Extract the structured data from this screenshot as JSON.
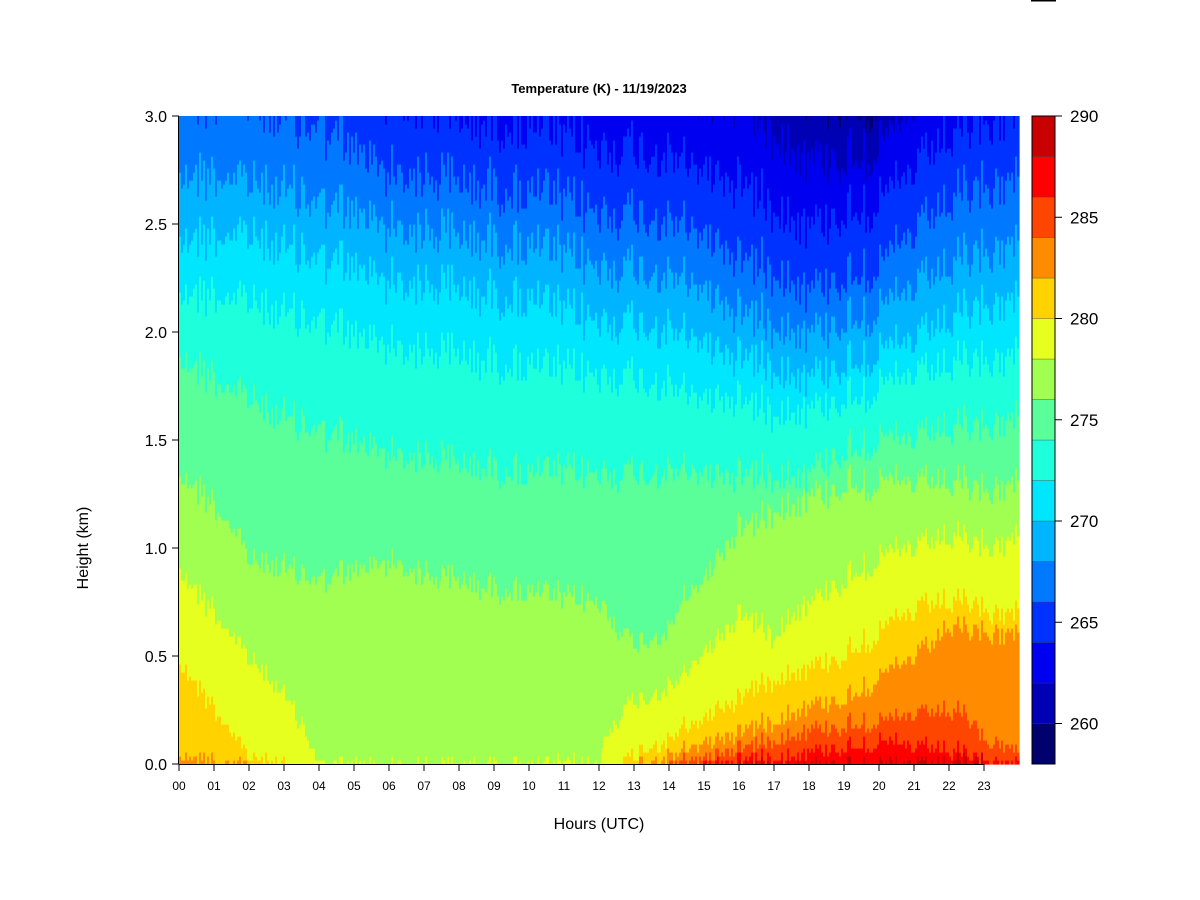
{
  "chart_data": {
    "type": "heatmap",
    "title": "Temperature (K) - 11/19/2023",
    "xlabel": "Hours (UTC)",
    "ylabel": "Height (km)",
    "x_ticks": [
      "00",
      "01",
      "02",
      "03",
      "04",
      "05",
      "06",
      "07",
      "08",
      "09",
      "10",
      "11",
      "12",
      "13",
      "14",
      "15",
      "16",
      "17",
      "18",
      "19",
      "20",
      "21",
      "22",
      "23"
    ],
    "xlim": [
      0,
      24
    ],
    "y_ticks": [
      "0.0",
      "0.5",
      "1.0",
      "1.5",
      "2.0",
      "2.5",
      "3.0"
    ],
    "ylim": [
      0,
      3
    ],
    "colorbar": {
      "ticks": [
        "260",
        "265",
        "270",
        "275",
        "280",
        "285",
        "290"
      ],
      "range": [
        258,
        290
      ],
      "levels": [
        258,
        260,
        262,
        264,
        266,
        268,
        270,
        272,
        274,
        276,
        278,
        280,
        282,
        284,
        286,
        288,
        290
      ],
      "colors": [
        "#00006e",
        "#0000b4",
        "#0000f0",
        "#0032ff",
        "#0078ff",
        "#00b4ff",
        "#00e6ff",
        "#1effdc",
        "#5aff9a",
        "#a0ff50",
        "#e6ff1e",
        "#ffd200",
        "#ff8c00",
        "#ff4600",
        "#ff0000",
        "#c80000",
        "#800000"
      ]
    },
    "profiles": [
      {
        "hour": 0,
        "isotherms": [
          {
            "t": 282,
            "z": 0.05
          },
          {
            "t": 276,
            "z": 1.35
          },
          {
            "t": 274,
            "z": 1.9
          },
          {
            "t": 272,
            "z": 2.2
          },
          {
            "t": 270,
            "z": 2.45
          },
          {
            "t": 268,
            "z": 2.75
          },
          {
            "t": 266,
            "z": 3.1
          }
        ]
      },
      {
        "hour": 2,
        "isotherms": [
          {
            "t": 280,
            "z": 0.03
          },
          {
            "t": 276,
            "z": 0.95
          },
          {
            "t": 274,
            "z": 1.7
          },
          {
            "t": 272,
            "z": 2.15
          },
          {
            "t": 270,
            "z": 2.45
          },
          {
            "t": 268,
            "z": 2.7
          },
          {
            "t": 266,
            "z": 3.05
          }
        ]
      },
      {
        "hour": 4,
        "isotherms": [
          {
            "t": 276,
            "z": 0.85
          },
          {
            "t": 274,
            "z": 1.55
          },
          {
            "t": 272,
            "z": 2.05
          },
          {
            "t": 270,
            "z": 2.35
          },
          {
            "t": 268,
            "z": 2.6
          },
          {
            "t": 266,
            "z": 2.95
          }
        ]
      },
      {
        "hour": 6,
        "isotherms": [
          {
            "t": 276,
            "z": 0.95
          },
          {
            "t": 274,
            "z": 1.45
          },
          {
            "t": 272,
            "z": 1.95
          },
          {
            "t": 270,
            "z": 2.25
          },
          {
            "t": 268,
            "z": 2.5
          },
          {
            "t": 266,
            "z": 2.75
          },
          {
            "t": 264,
            "z": 3.1
          }
        ]
      },
      {
        "hour": 8,
        "isotherms": [
          {
            "t": 276,
            "z": 0.85
          },
          {
            "t": 274,
            "z": 1.4
          },
          {
            "t": 272,
            "z": 1.9
          },
          {
            "t": 270,
            "z": 2.2
          },
          {
            "t": 268,
            "z": 2.45
          },
          {
            "t": 266,
            "z": 2.7
          },
          {
            "t": 264,
            "z": 3.0
          }
        ]
      },
      {
        "hour": 10,
        "isotherms": [
          {
            "t": 276,
            "z": 0.8
          },
          {
            "t": 274,
            "z": 1.35
          },
          {
            "t": 272,
            "z": 1.85
          },
          {
            "t": 270,
            "z": 2.15
          },
          {
            "t": 268,
            "z": 2.4
          },
          {
            "t": 266,
            "z": 2.65
          },
          {
            "t": 264,
            "z": 2.95
          }
        ]
      },
      {
        "hour": 12,
        "isotherms": [
          {
            "t": 276,
            "z": 0.75
          },
          {
            "t": 274,
            "z": 1.35
          },
          {
            "t": 272,
            "z": 1.8
          },
          {
            "t": 270,
            "z": 2.05
          },
          {
            "t": 268,
            "z": 2.3
          },
          {
            "t": 266,
            "z": 2.55
          },
          {
            "t": 264,
            "z": 2.85
          }
        ]
      },
      {
        "hour": 13,
        "isotherms": [
          {
            "t": 280,
            "z": 0.03
          },
          {
            "t": 276,
            "z": 0.55
          },
          {
            "t": 274,
            "z": 1.35
          },
          {
            "t": 272,
            "z": 1.8
          },
          {
            "t": 270,
            "z": 2.05
          },
          {
            "t": 268,
            "z": 2.3
          },
          {
            "t": 266,
            "z": 2.55
          },
          {
            "t": 264,
            "z": 2.85
          }
        ]
      },
      {
        "hour": 14,
        "isotherms": [
          {
            "t": 282,
            "z": 0.03
          },
          {
            "t": 280,
            "z": 0.1
          },
          {
            "t": 276,
            "z": 0.6
          },
          {
            "t": 274,
            "z": 1.35
          },
          {
            "t": 272,
            "z": 1.75
          },
          {
            "t": 270,
            "z": 2.0
          },
          {
            "t": 268,
            "z": 2.25
          },
          {
            "t": 266,
            "z": 2.5
          },
          {
            "t": 264,
            "z": 2.8
          }
        ]
      },
      {
        "hour": 15,
        "isotherms": [
          {
            "t": 284,
            "z": 0.03
          },
          {
            "t": 282,
            "z": 0.1
          },
          {
            "t": 280,
            "z": 0.2
          },
          {
            "t": 276,
            "z": 0.85
          },
          {
            "t": 274,
            "z": 1.35
          },
          {
            "t": 272,
            "z": 1.7
          },
          {
            "t": 270,
            "z": 1.95
          },
          {
            "t": 268,
            "z": 2.2
          },
          {
            "t": 266,
            "z": 2.45
          },
          {
            "t": 264,
            "z": 2.75
          }
        ]
      },
      {
        "hour": 16,
        "isotherms": [
          {
            "t": 286,
            "z": 0.02
          },
          {
            "t": 284,
            "z": 0.08
          },
          {
            "t": 282,
            "z": 0.15
          },
          {
            "t": 280,
            "z": 0.3
          },
          {
            "t": 276,
            "z": 1.1
          },
          {
            "t": 274,
            "z": 1.35
          },
          {
            "t": 272,
            "z": 1.7
          },
          {
            "t": 270,
            "z": 1.9
          },
          {
            "t": 268,
            "z": 2.1
          },
          {
            "t": 266,
            "z": 2.35
          },
          {
            "t": 264,
            "z": 2.7
          },
          {
            "t": 262,
            "z": 3.1
          }
        ]
      },
      {
        "hour": 17,
        "isotherms": [
          {
            "t": 286,
            "z": 0.04
          },
          {
            "t": 284,
            "z": 0.12
          },
          {
            "t": 282,
            "z": 0.2
          },
          {
            "t": 280,
            "z": 0.4
          },
          {
            "t": 278,
            "z": 0.6
          },
          {
            "t": 276,
            "z": 1.2
          },
          {
            "t": 274,
            "z": 1.35
          },
          {
            "t": 272,
            "z": 1.65
          },
          {
            "t": 270,
            "z": 1.85
          },
          {
            "t": 268,
            "z": 2.05
          },
          {
            "t": 266,
            "z": 2.3
          },
          {
            "t": 264,
            "z": 2.6
          },
          {
            "t": 262,
            "z": 2.95
          }
        ]
      },
      {
        "hour": 18,
        "isotherms": [
          {
            "t": 286,
            "z": 0.06
          },
          {
            "t": 284,
            "z": 0.16
          },
          {
            "t": 282,
            "z": 0.27
          },
          {
            "t": 280,
            "z": 0.45
          },
          {
            "t": 278,
            "z": 0.75
          },
          {
            "t": 276,
            "z": 1.25
          },
          {
            "t": 274,
            "z": 1.35
          },
          {
            "t": 272,
            "z": 1.65
          },
          {
            "t": 270,
            "z": 1.8
          },
          {
            "t": 268,
            "z": 2.0
          },
          {
            "t": 266,
            "z": 2.2
          },
          {
            "t": 264,
            "z": 2.5
          },
          {
            "t": 262,
            "z": 2.8
          },
          {
            "t": 260,
            "z": 3.1
          }
        ]
      },
      {
        "hour": 19,
        "isotherms": [
          {
            "t": 286,
            "z": 0.08
          },
          {
            "t": 284,
            "z": 0.18
          },
          {
            "t": 282,
            "z": 0.3
          },
          {
            "t": 280,
            "z": 0.5
          },
          {
            "t": 278,
            "z": 0.85
          },
          {
            "t": 276,
            "z": 1.3
          },
          {
            "t": 274,
            "z": 1.45
          },
          {
            "t": 272,
            "z": 1.7
          },
          {
            "t": 270,
            "z": 1.85
          },
          {
            "t": 268,
            "z": 2.05
          },
          {
            "t": 266,
            "z": 2.25
          },
          {
            "t": 264,
            "z": 2.55
          },
          {
            "t": 262,
            "z": 2.8
          },
          {
            "t": 260,
            "z": 3.05
          }
        ]
      },
      {
        "hour": 20,
        "isotherms": [
          {
            "t": 286,
            "z": 0.1
          },
          {
            "t": 284,
            "z": 0.2
          },
          {
            "t": 282,
            "z": 0.4
          },
          {
            "t": 280,
            "z": 0.6
          },
          {
            "t": 278,
            "z": 0.95
          },
          {
            "t": 276,
            "z": 1.3
          },
          {
            "t": 274,
            "z": 1.5
          },
          {
            "t": 272,
            "z": 1.75
          },
          {
            "t": 270,
            "z": 1.9
          },
          {
            "t": 268,
            "z": 2.1
          },
          {
            "t": 266,
            "z": 2.3
          },
          {
            "t": 264,
            "z": 2.6
          },
          {
            "t": 262,
            "z": 2.85
          },
          {
            "t": 260,
            "z": 3.05
          }
        ]
      },
      {
        "hour": 21,
        "isotherms": [
          {
            "t": 286,
            "z": 0.08
          },
          {
            "t": 284,
            "z": 0.22
          },
          {
            "t": 282,
            "z": 0.5
          },
          {
            "t": 280,
            "z": 0.7
          },
          {
            "t": 278,
            "z": 1.0
          },
          {
            "t": 276,
            "z": 1.3
          },
          {
            "t": 274,
            "z": 1.5
          },
          {
            "t": 272,
            "z": 1.8
          },
          {
            "t": 270,
            "z": 1.95
          },
          {
            "t": 268,
            "z": 2.2
          },
          {
            "t": 266,
            "z": 2.45
          },
          {
            "t": 264,
            "z": 2.75
          },
          {
            "t": 262,
            "z": 3.05
          }
        ]
      },
      {
        "hour": 22,
        "isotherms": [
          {
            "t": 286,
            "z": 0.06
          },
          {
            "t": 284,
            "z": 0.25
          },
          {
            "t": 282,
            "z": 0.65
          },
          {
            "t": 280,
            "z": 0.75
          },
          {
            "t": 278,
            "z": 1.05
          },
          {
            "t": 276,
            "z": 1.3
          },
          {
            "t": 274,
            "z": 1.55
          },
          {
            "t": 272,
            "z": 1.85
          },
          {
            "t": 270,
            "z": 2.05
          },
          {
            "t": 268,
            "z": 2.3
          },
          {
            "t": 266,
            "z": 2.6
          },
          {
            "t": 264,
            "z": 2.9
          }
        ]
      },
      {
        "hour": 23,
        "isotherms": [
          {
            "t": 286,
            "z": 0.01
          },
          {
            "t": 284,
            "z": 0.1
          },
          {
            "t": 282,
            "z": 0.6
          },
          {
            "t": 280,
            "z": 0.7
          },
          {
            "t": 278,
            "z": 1.0
          },
          {
            "t": 276,
            "z": 1.25
          },
          {
            "t": 274,
            "z": 1.55
          },
          {
            "t": 272,
            "z": 1.85
          },
          {
            "t": 270,
            "z": 2.1
          },
          {
            "t": 268,
            "z": 2.35
          },
          {
            "t": 266,
            "z": 2.65
          },
          {
            "t": 264,
            "z": 2.95
          }
        ]
      },
      {
        "hour": 24,
        "isotherms": [
          {
            "t": 284,
            "z": 0.03
          },
          {
            "t": 282,
            "z": 0.6
          },
          {
            "t": 280,
            "z": 0.7
          },
          {
            "t": 278,
            "z": 1.05
          },
          {
            "t": 276,
            "z": 1.3
          },
          {
            "t": 274,
            "z": 1.6
          },
          {
            "t": 272,
            "z": 1.9
          },
          {
            "t": 270,
            "z": 2.15
          },
          {
            "t": 268,
            "z": 2.4
          },
          {
            "t": 266,
            "z": 2.7
          },
          {
            "t": 264,
            "z": 3.0
          }
        ]
      }
    ]
  }
}
